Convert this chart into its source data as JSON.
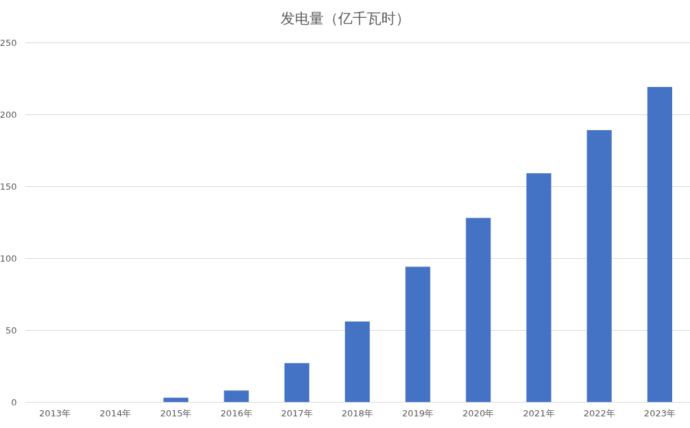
{
  "chart_data": {
    "type": "bar",
    "title": "发电量（亿千瓦时）",
    "categories": [
      "2013年",
      "2014年",
      "2015年",
      "2016年",
      "2017年",
      "2018年",
      "2019年",
      "2020年",
      "2021年",
      "2022年",
      "2023年"
    ],
    "values": [
      0,
      0,
      3,
      8,
      27,
      56,
      94,
      128,
      159,
      189,
      219
    ],
    "color": "#4472c4",
    "ylim": [
      0,
      250
    ],
    "yticks": [
      0,
      50,
      100,
      150,
      200,
      250
    ],
    "grid": "y"
  }
}
